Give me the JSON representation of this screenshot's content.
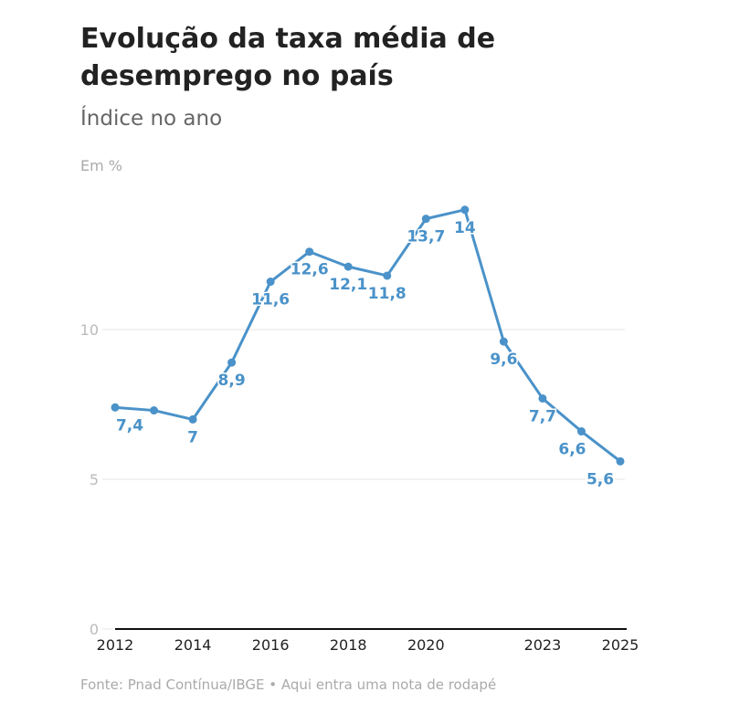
{
  "chart_data": {
    "type": "line",
    "title": "Evolução da taxa média de desemprego no país",
    "subtitle": "Índice no ano",
    "ylabel": "Em %",
    "source": "Fonte: Pnad Contínua/IBGE • Aqui entra uma nota de rodapé",
    "x": [
      2012,
      2013,
      2014,
      2015,
      2016,
      2017,
      2018,
      2019,
      2020,
      2021,
      2022,
      2023,
      2024,
      2025
    ],
    "values": [
      7.4,
      7.3,
      7,
      8.9,
      11.6,
      12.6,
      12.1,
      11.8,
      13.7,
      14,
      9.6,
      7.7,
      6.6,
      5.6
    ],
    "data_labels": [
      "7,4",
      "",
      "7",
      "8,9",
      "11,6",
      "12,6",
      "12,1",
      "11,8",
      "13,7",
      "14",
      "9,6",
      "7,7",
      "6,6",
      "5,6"
    ],
    "x_ticks": [
      2012,
      2014,
      2016,
      2018,
      2020,
      2023,
      2025
    ],
    "y_ticks": [
      0,
      5,
      10
    ],
    "ylim": [
      0,
      15
    ],
    "grid": true,
    "color": "#4a92c9"
  }
}
